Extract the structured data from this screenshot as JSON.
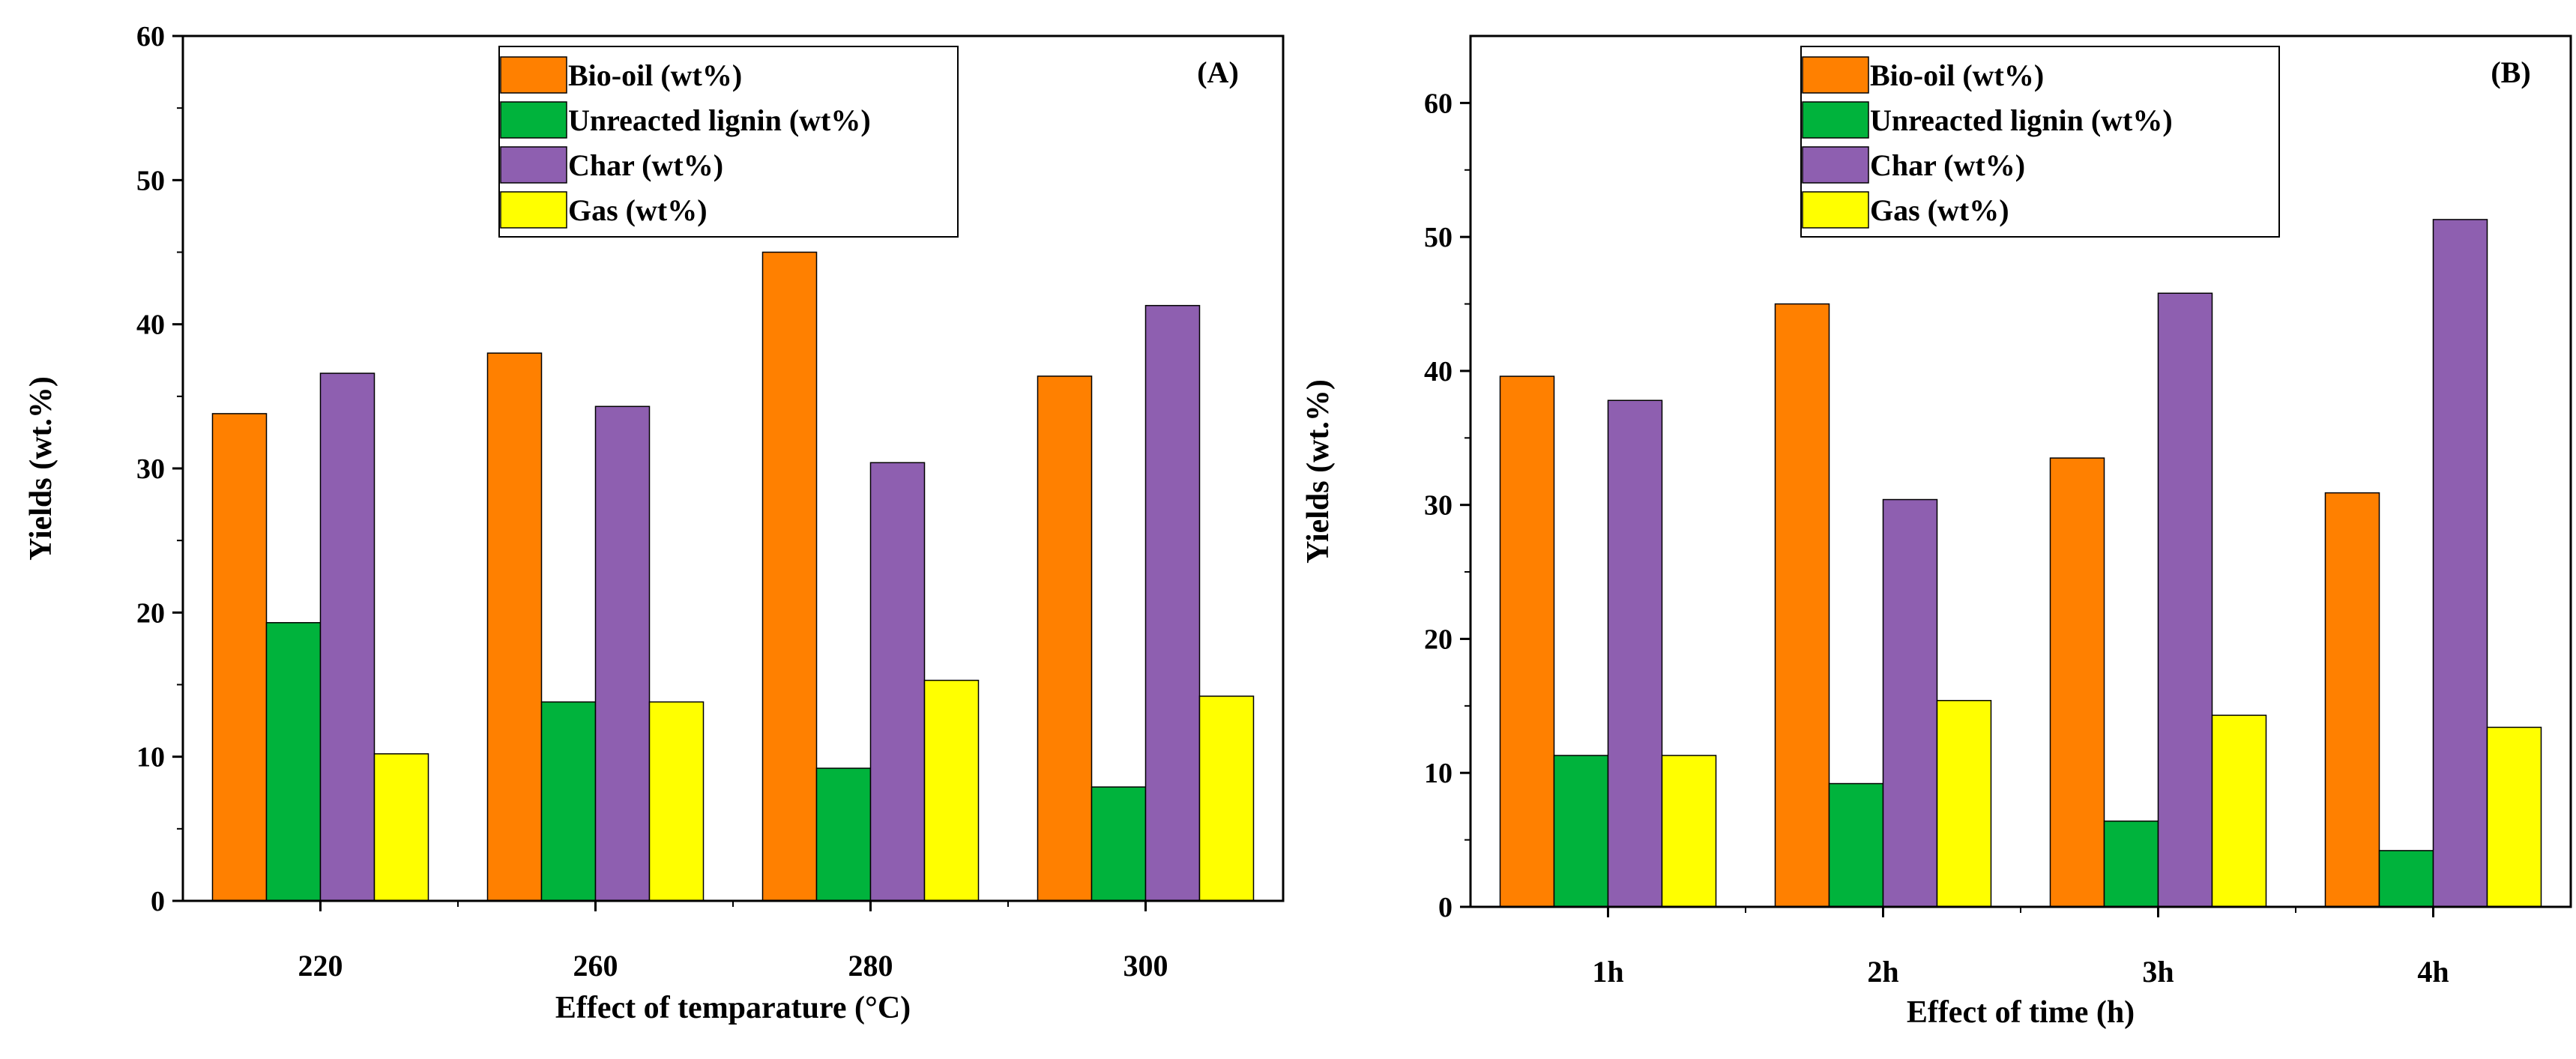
{
  "colors": {
    "Bio-oil (wt%)": "#ff8000",
    "Unreacted lignin (wt%)": "#00b33c",
    "Char (wt%)": "#8e5fb0",
    "Gas (wt%)": "#ffff00"
  },
  "chart_data": [
    {
      "type": "bar",
      "panel_label": "(A)",
      "title": "",
      "xlabel": "Effect of temparature (°C)",
      "ylabel": "Yields (wt.%)",
      "ylim": [
        0,
        60
      ],
      "yticks": [
        0,
        10,
        20,
        30,
        40,
        50,
        60
      ],
      "categories": [
        "220",
        "260",
        "280",
        "300"
      ],
      "legend_position": "top-center",
      "series": [
        {
          "name": "Bio-oil (wt%)",
          "values": [
            33.8,
            38.0,
            45.0,
            36.4
          ]
        },
        {
          "name": "Unreacted lignin (wt%)",
          "values": [
            19.3,
            13.8,
            9.2,
            7.9
          ]
        },
        {
          "name": "Char (wt%)",
          "values": [
            36.6,
            34.3,
            30.4,
            41.3
          ]
        },
        {
          "name": "Gas (wt%)",
          "values": [
            10.2,
            13.8,
            15.3,
            14.2
          ]
        }
      ]
    },
    {
      "type": "bar",
      "panel_label": "(B)",
      "title": "",
      "xlabel": "Effect of time (h)",
      "ylabel": "Yields (wt.%)",
      "ylim": [
        0,
        65
      ],
      "yticks": [
        0,
        10,
        20,
        30,
        40,
        50,
        60
      ],
      "categories": [
        "1h",
        "2h",
        "3h",
        "4h"
      ],
      "legend_position": "top-center",
      "series": [
        {
          "name": "Bio-oil (wt%)",
          "values": [
            39.6,
            45.0,
            33.5,
            30.9
          ]
        },
        {
          "name": "Unreacted lignin (wt%)",
          "values": [
            11.3,
            9.2,
            6.4,
            4.2
          ]
        },
        {
          "name": "Char (wt%)",
          "values": [
            37.8,
            30.4,
            45.8,
            51.3
          ]
        },
        {
          "name": "Gas (wt%)",
          "values": [
            11.3,
            15.4,
            14.3,
            13.4
          ]
        }
      ]
    }
  ]
}
